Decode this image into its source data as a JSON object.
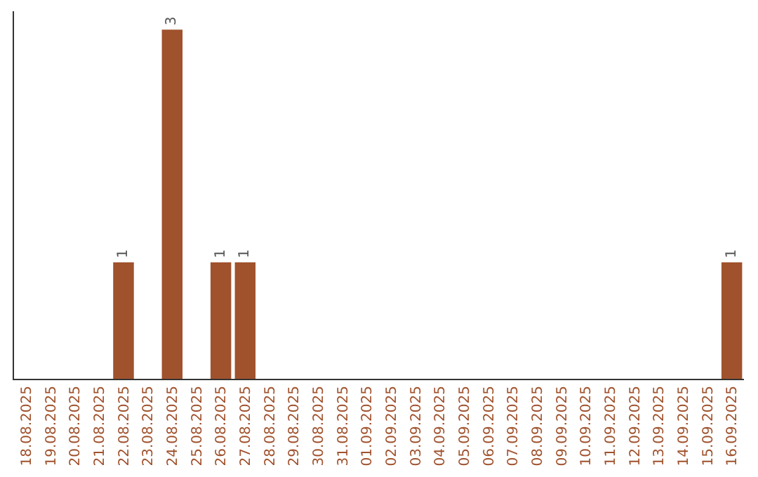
{
  "chart_data": {
    "type": "bar",
    "categories": [
      "18.08.2025",
      "19.08.2025",
      "20.08.2025",
      "21.08.2025",
      "22.08.2025",
      "23.08.2025",
      "24.08.2025",
      "25.08.2025",
      "26.08.2025",
      "27.08.2025",
      "28.08.2025",
      "29.08.2025",
      "30.08.2025",
      "31.08.2025",
      "01.09.2025",
      "02.09.2025",
      "03.09.2025",
      "04.09.2025",
      "05.09.2025",
      "06.09.2025",
      "07.09.2025",
      "08.09.2025",
      "09.09.2025",
      "10.09.2025",
      "11.09.2025",
      "12.09.2025",
      "13.09.2025",
      "14.09.2025",
      "15.09.2025",
      "16.09.2025"
    ],
    "values": [
      0,
      0,
      0,
      0,
      1,
      0,
      3,
      0,
      1,
      1,
      0,
      0,
      0,
      0,
      0,
      0,
      0,
      0,
      0,
      0,
      0,
      0,
      0,
      0,
      0,
      0,
      0,
      0,
      0,
      1
    ],
    "value_labels": [
      null,
      null,
      null,
      null,
      "1",
      null,
      "3",
      null,
      "1",
      "1",
      null,
      null,
      null,
      null,
      null,
      null,
      null,
      null,
      null,
      null,
      null,
      null,
      null,
      null,
      null,
      null,
      null,
      null,
      null,
      "1"
    ],
    "color": "#a0522d"
  }
}
